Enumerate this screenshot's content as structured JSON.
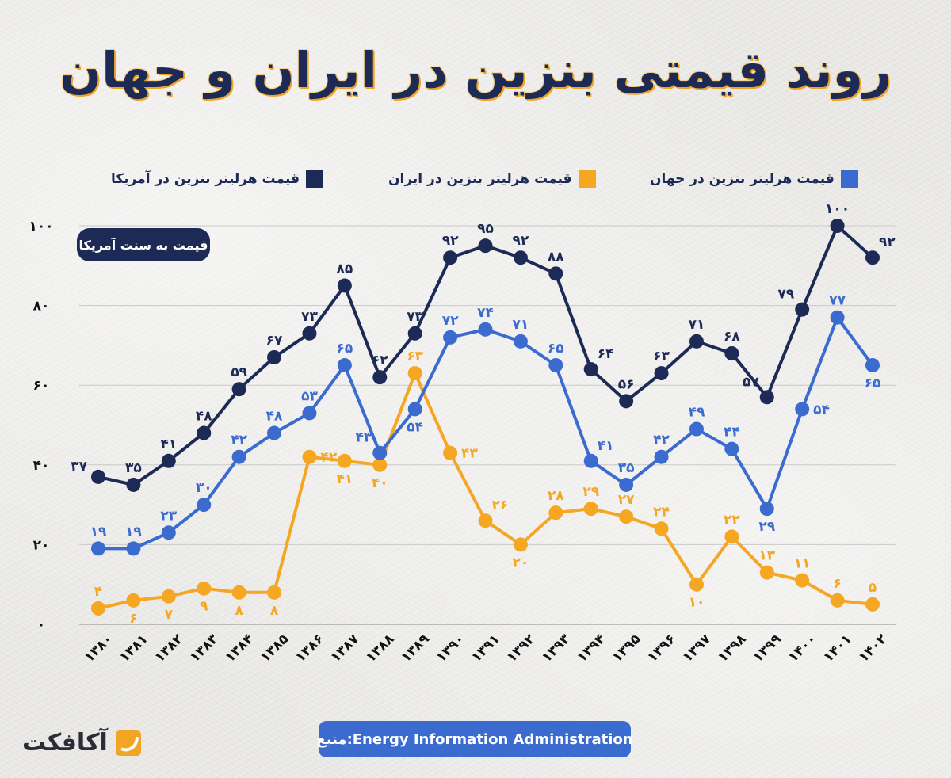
{
  "title": "روند قیمتی بنزین در ایران و جهان",
  "unit_badge": "قیمت به سنت آمریکا",
  "source": "منبع:Energy Information Administration",
  "logo_text": "آکافکت",
  "logo_icon": "brand-mark-icon",
  "legend": [
    {
      "label": "قیمت هرلیتر بنزین در آمریکا",
      "color": "#1d2a55"
    },
    {
      "label": "قیمت هرلیتر بنزین در ایران",
      "color": "#f5a623"
    },
    {
      "label": "قیمت هرلیتر بنزین در جهان",
      "color": "#3c6bd0"
    }
  ],
  "chart_data": {
    "type": "line",
    "title": "روند قیمتی بنزین در ایران و جهان",
    "xlabel": "",
    "ylabel": "قیمت به سنت آمریکا",
    "ylim": [
      0,
      100
    ],
    "yticks": [
      0,
      20,
      40,
      60,
      80,
      100
    ],
    "ytick_labels": [
      "۰",
      "۲۰",
      "۴۰",
      "۶۰",
      "۸۰",
      "۱۰۰"
    ],
    "grid": true,
    "legend_position": "top",
    "x": [
      "۱۳۸۰",
      "۱۳۸۱",
      "۱۳۸۲",
      "۱۳۸۳",
      "۱۳۸۴",
      "۱۳۸۵",
      "۱۳۸۶",
      "۱۳۸۷",
      "۱۳۸۸",
      "۱۳۸۹",
      "۱۳۹۰",
      "۱۳۹۱",
      "۱۳۹۲",
      "۱۳۹۳",
      "۱۳۹۴",
      "۱۳۹۵",
      "۱۳۹۶",
      "۱۳۹۷",
      "۱۳۹۸",
      "۱۳۹۹",
      "۱۴۰۰",
      "۱۴۰۱",
      "۱۴۰۲"
    ],
    "series": [
      {
        "name": "قیمت هرلیتر بنزین در آمریکا",
        "color": "#1d2a55",
        "values": [
          37,
          35,
          41,
          48,
          59,
          67,
          73,
          85,
          62,
          73,
          92,
          95,
          92,
          88,
          64,
          56,
          63,
          71,
          68,
          57,
          79,
          100,
          92
        ]
      },
      {
        "name": "قیمت هرلیتر بنزین در جهان",
        "color": "#3c6bd0",
        "values": [
          19,
          19,
          23,
          30,
          42,
          48,
          53,
          65,
          43,
          54,
          72,
          74,
          71,
          65,
          41,
          35,
          42,
          49,
          44,
          29,
          54,
          77,
          65
        ]
      },
      {
        "name": "قیمت هرلیتر بنزین در ایران",
        "color": "#f5a623",
        "values": [
          4,
          6,
          7,
          9,
          8,
          8,
          42,
          41,
          40,
          63,
          43,
          26,
          20,
          28,
          29,
          27,
          24,
          10,
          22,
          13,
          11,
          6,
          5
        ]
      }
    ]
  }
}
